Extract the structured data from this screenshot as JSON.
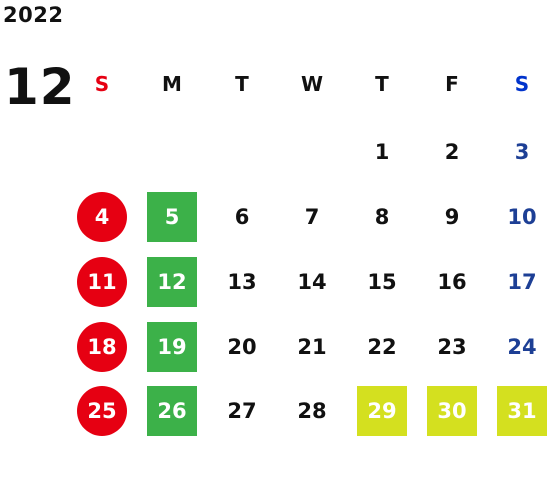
{
  "calendar": {
    "year": "2022",
    "month": "12",
    "weekdays": [
      "S",
      "M",
      "T",
      "W",
      "T",
      "F",
      "S"
    ],
    "weeks": [
      [
        "",
        "",
        "",
        "",
        "1",
        "2",
        "3"
      ],
      [
        "4",
        "5",
        "6",
        "7",
        "8",
        "9",
        "10"
      ],
      [
        "11",
        "12",
        "13",
        "14",
        "15",
        "16",
        "17"
      ],
      [
        "18",
        "19",
        "20",
        "21",
        "22",
        "23",
        "24"
      ],
      [
        "25",
        "26",
        "27",
        "28",
        "29",
        "30",
        "31"
      ]
    ]
  },
  "colors": {
    "sunday": "#e60012",
    "saturday": "#1d3f95",
    "saturday_header": "#0033cc",
    "monday_highlight": "#3cb149",
    "year_end_highlight": "#d4e01f"
  },
  "highlights": {
    "circled_red": [
      "4",
      "11",
      "18",
      "25"
    ],
    "green_squares": [
      "5",
      "12",
      "19",
      "26"
    ],
    "yellow_squares": [
      "29",
      "30",
      "31"
    ]
  }
}
